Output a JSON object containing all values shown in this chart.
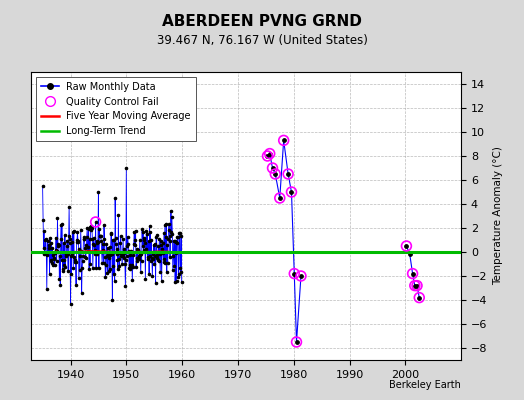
{
  "title": "ABERDEEN PVNG GRND",
  "subtitle": "39.467 N, 76.167 W (United States)",
  "ylabel": "Temperature Anomaly (°C)",
  "credit": "Berkeley Earth",
  "ylim": [
    -9,
    15
  ],
  "yticks": [
    -8,
    -6,
    -4,
    -2,
    0,
    2,
    4,
    6,
    8,
    10,
    12,
    14
  ],
  "xlim": [
    1933,
    2010
  ],
  "xticks": [
    1940,
    1950,
    1960,
    1970,
    1980,
    1990,
    2000
  ],
  "bg_color": "#d8d8d8",
  "plot_bg": "#ffffff",
  "raw_color": "#0000ff",
  "raw_dot_color": "#000000",
  "qc_color": "#ff00ff",
  "ma_color": "#ff0000",
  "trend_color": "#00bb00",
  "trend_y": 0.0,
  "sparse_group1_x": [
    1975.3,
    1975.7,
    1976.2,
    1976.7,
    1977.5,
    1978.2,
    1979.0,
    1979.6,
    1980.1,
    1980.5,
    1981.3
  ],
  "sparse_group1_y": [
    8.0,
    8.2,
    7.0,
    6.5,
    4.5,
    9.3,
    6.5,
    5.0,
    -1.8,
    -7.5,
    -2.0
  ],
  "sparse_group2_x": [
    2000.2,
    2000.8,
    2001.3,
    2001.7,
    2002.1,
    2002.5
  ],
  "sparse_group2_y": [
    0.5,
    -0.2,
    -1.8,
    -2.8,
    -2.8,
    -3.8
  ],
  "qc_x": [
    1975.3,
    1975.7,
    1976.2,
    1976.7,
    1977.5,
    1978.2,
    1979.0,
    1979.6,
    1980.1,
    1980.5,
    1981.3,
    2000.2,
    2001.3,
    2001.7,
    2002.1,
    2002.5
  ],
  "qc_y": [
    8.0,
    8.2,
    7.0,
    6.5,
    4.5,
    9.3,
    6.5,
    5.0,
    -1.8,
    -7.5,
    -2.0,
    0.5,
    -1.8,
    -2.8,
    -2.8,
    -3.8
  ]
}
